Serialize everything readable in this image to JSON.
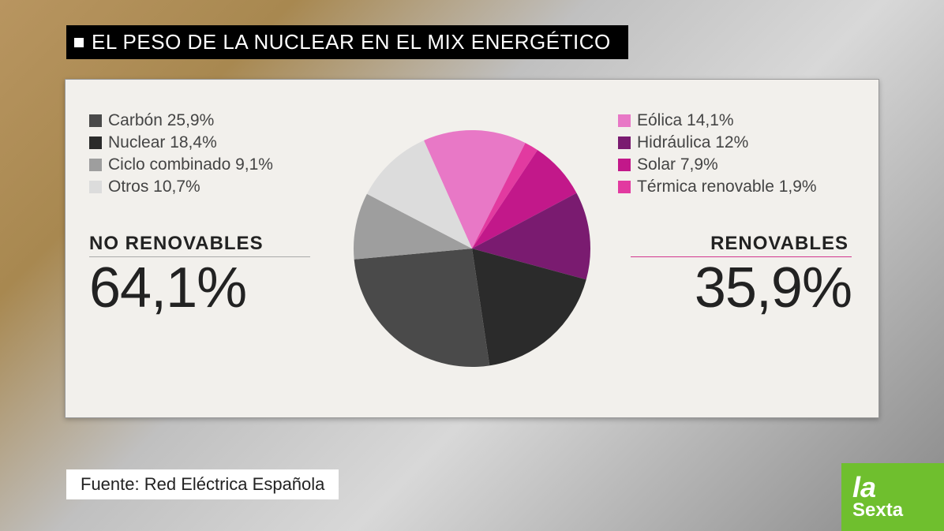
{
  "title": "EL PESO DE LA NUCLEAR EN EL MIX ENERGÉTICO",
  "source_label": "Fuente: Red Eléctrica Española",
  "channel_logo": {
    "line1": "la",
    "line2": "Sexta"
  },
  "chart": {
    "type": "pie",
    "background_color": "#f2f0ec",
    "groups": {
      "left": {
        "label": "NO RENOVABLES",
        "total": "64,1%",
        "rule_color": "#aaaaaa"
      },
      "right": {
        "label": "RENOVABLES",
        "total": "35,9%",
        "rule_color": "#d1368e"
      }
    },
    "left_legend": [
      {
        "label": "Carbón 25,9%",
        "color": "#4a4a4a",
        "value": 25.9
      },
      {
        "label": "Nuclear 18,4%",
        "color": "#2b2b2b",
        "value": 18.4
      },
      {
        "label": "Ciclo combinado 9,1%",
        "color": "#9e9e9e",
        "value": 9.1
      },
      {
        "label": "Otros 10,7%",
        "color": "#dcdcdc",
        "value": 10.7
      }
    ],
    "right_legend": [
      {
        "label": "Eólica  14,1%",
        "color": "#e878c6",
        "value": 14.1
      },
      {
        "label": "Hidráulica  12%",
        "color": "#7a1b70",
        "value": 12.0
      },
      {
        "label": "Solar 7,9%",
        "color": "#c2188a",
        "value": 7.9
      },
      {
        "label": "Térmica renovable 1,9%",
        "color": "#e23aa0",
        "value": 1.9
      }
    ],
    "slice_order": [
      "Eólica",
      "Térmica renovable",
      "Solar",
      "Hidráulica",
      "Nuclear",
      "Carbón",
      "Ciclo combinado",
      "Otros"
    ],
    "slice_colors": {
      "Eólica": "#e878c6",
      "Térmica renovable": "#e23aa0",
      "Solar": "#c2188a",
      "Hidráulica": "#7a1b70",
      "Nuclear": "#2b2b2b",
      "Carbón": "#4a4a4a",
      "Ciclo combinado": "#9e9e9e",
      "Otros": "#dcdcdc"
    },
    "slice_values": {
      "Eólica": 14.1,
      "Térmica renovable": 1.9,
      "Solar": 7.9,
      "Hidráulica": 12.0,
      "Nuclear": 18.4,
      "Carbón": 25.9,
      "Ciclo combinado": 9.1,
      "Otros": 10.7
    },
    "start_angle_deg": -24,
    "title_fontsize": 26,
    "legend_fontsize": 21,
    "group_label_fontsize": 24,
    "bigpct_fontsize": 72
  }
}
